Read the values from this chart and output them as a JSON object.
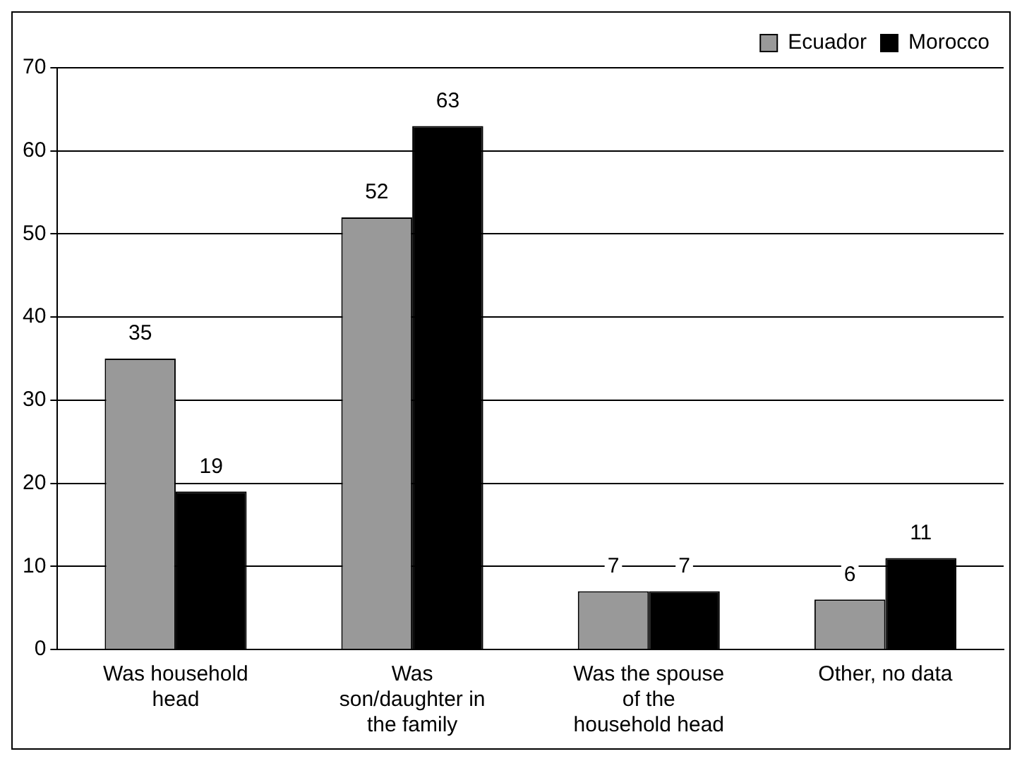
{
  "chart_data": {
    "type": "bar",
    "categories": [
      "Was household head",
      "Was son/daughter in the family",
      "Was the spouse of the household head",
      "Other, no data"
    ],
    "series": [
      {
        "name": "Ecuador",
        "color": "#999999",
        "values": [
          35,
          52,
          7,
          6
        ]
      },
      {
        "name": "Morocco",
        "color": "#000000",
        "values": [
          19,
          63,
          7,
          11
        ]
      }
    ],
    "ylim": [
      0,
      70
    ],
    "yticks": [
      0,
      10,
      20,
      30,
      40,
      50,
      60,
      70
    ],
    "grid": "y",
    "legend": "top right",
    "data_labels": true
  }
}
